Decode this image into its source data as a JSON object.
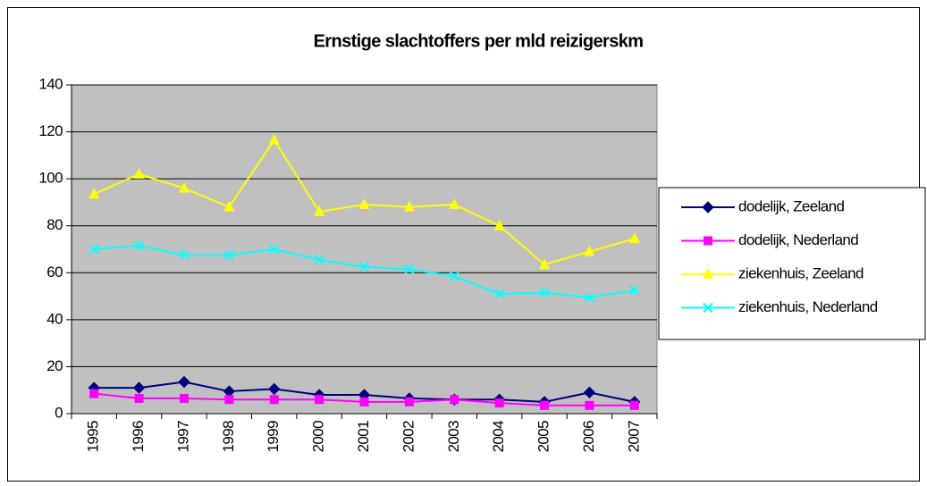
{
  "chart_data": {
    "type": "line",
    "title": "Ernstige slachtoffers per mld reizigerskm",
    "categories": [
      "1995",
      "1996",
      "1997",
      "1998",
      "1999",
      "2000",
      "2001",
      "2002",
      "2003",
      "2004",
      "2005",
      "2006",
      "2007"
    ],
    "series": [
      {
        "name": "dodelijk, Zeeland",
        "color": "#000080",
        "marker": "diamond",
        "values": [
          11,
          11,
          13.5,
          9.5,
          10.5,
          8,
          8,
          6.5,
          6,
          6,
          5,
          9,
          5
        ]
      },
      {
        "name": "dodelijk, Nederland",
        "color": "#ff00ff",
        "marker": "square",
        "values": [
          8.5,
          6.5,
          6.5,
          6,
          6,
          6,
          5,
          5,
          6,
          4.5,
          3.5,
          3.5,
          3.5
        ]
      },
      {
        "name": "ziekenhuis, Zeeland",
        "color": "#ffff00",
        "marker": "triangle",
        "values": [
          93.5,
          102,
          96,
          88,
          116.5,
          86,
          89,
          88,
          89,
          80,
          63.5,
          69,
          74.5
        ]
      },
      {
        "name": "ziekenhuis, Nederland",
        "color": "#00ffff",
        "marker": "x",
        "values": [
          70,
          71.5,
          67.5,
          67.5,
          70,
          65.5,
          62.5,
          61.5,
          58.5,
          51,
          51.5,
          49.5,
          52.5
        ]
      }
    ],
    "ylim": [
      0,
      140
    ],
    "yticks": [
      0,
      20,
      40,
      60,
      80,
      100,
      120,
      140
    ],
    "grid": true,
    "legend": "right"
  }
}
